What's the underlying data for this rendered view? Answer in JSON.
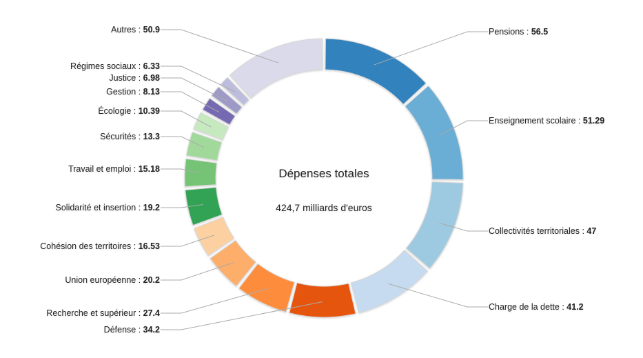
{
  "chart_data": {
    "type": "pie",
    "variant": "donut",
    "center_title": "Dépenses totales",
    "center_subtitle": "424,7 milliards d'euros",
    "label_separator": " : ",
    "slices": [
      {
        "label": "Pensions",
        "value": 56.5,
        "value_text": "56.5",
        "color": "#3182bd",
        "side": "right"
      },
      {
        "label": "Enseignement scolaire",
        "value": 51.29,
        "value_text": "51.29",
        "color": "#6baed6",
        "side": "right"
      },
      {
        "label": "Collectivités territoriales",
        "value": 47,
        "value_text": "47",
        "color": "#9ecae1",
        "side": "right"
      },
      {
        "label": "Charge de la dette",
        "value": 41.2,
        "value_text": "41.2",
        "color": "#c6dbef",
        "side": "right"
      },
      {
        "label": "Défense",
        "value": 34.2,
        "value_text": "34.2",
        "color": "#e6550d",
        "side": "left"
      },
      {
        "label": "Recherche et supérieur",
        "value": 27.4,
        "value_text": "27.4",
        "color": "#fd8d3c",
        "side": "left"
      },
      {
        "label": "Union européenne",
        "value": 20.2,
        "value_text": "20.2",
        "color": "#fdae6b",
        "side": "left"
      },
      {
        "label": "Cohésion des territoires",
        "value": 16.53,
        "value_text": "16.53",
        "color": "#fdd0a2",
        "side": "left"
      },
      {
        "label": "Solidarité et insertion",
        "value": 19.2,
        "value_text": "19.2",
        "color": "#31a354",
        "side": "left"
      },
      {
        "label": "Travail et emploi",
        "value": 15.18,
        "value_text": "15.18",
        "color": "#74c476",
        "side": "left"
      },
      {
        "label": "Sécurités",
        "value": 13.3,
        "value_text": "13.3",
        "color": "#a1d99b",
        "side": "left"
      },
      {
        "label": "Écologie",
        "value": 10.39,
        "value_text": "10.39",
        "color": "#c7e9c0",
        "side": "left"
      },
      {
        "label": "Gestion",
        "value": 8.13,
        "value_text": "8.13",
        "color": "#756bb1",
        "side": "left"
      },
      {
        "label": "Justice",
        "value": 6.98,
        "value_text": "6.98",
        "color": "#9e9ac8",
        "side": "left"
      },
      {
        "label": "Régimes sociaux",
        "value": 6.33,
        "value_text": "6.33",
        "color": "#bcbddc",
        "side": "left"
      },
      {
        "label": "Autres",
        "value": 50.9,
        "value_text": "50.9",
        "color": "#dadaeb",
        "side": "left"
      }
    ]
  }
}
